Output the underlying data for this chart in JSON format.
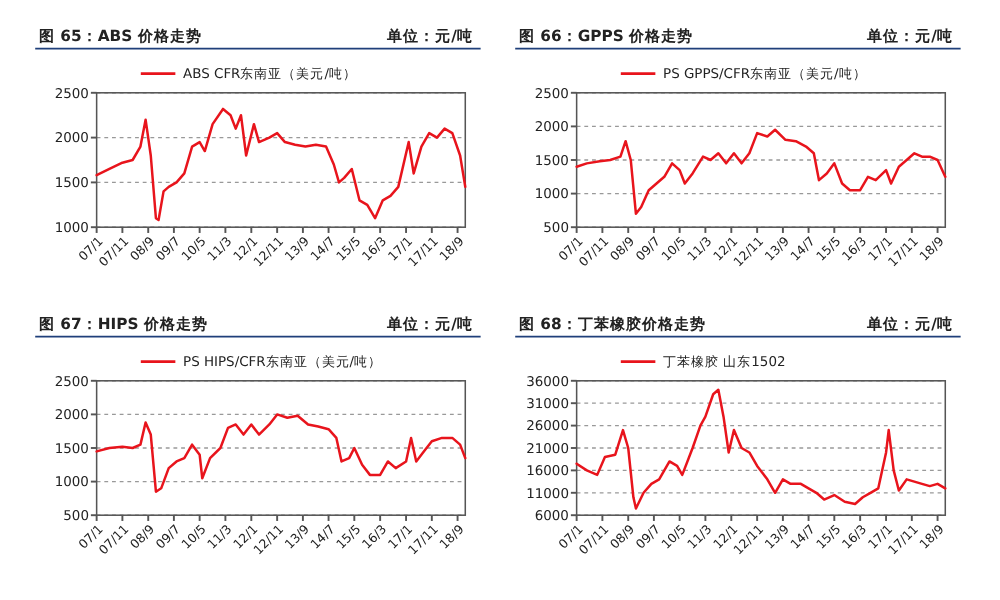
{
  "chart_data": [
    {
      "type": "line",
      "title": "图 65：ABS 价格走势",
      "subtitle": "单位：元/吨",
      "legend": "top",
      "grid": "y",
      "xlim": [
        "2007-01",
        "2018-12"
      ],
      "ylim": [
        1000,
        2500
      ],
      "yticks": [
        1000,
        1500,
        2000,
        2500
      ],
      "xticks": [
        {
          "value": "2007-01",
          "label": "07/1"
        },
        {
          "value": "2007-11",
          "label": "07/11"
        },
        {
          "value": "2008-09",
          "label": "08/9"
        },
        {
          "value": "2009-07",
          "label": "09/7"
        },
        {
          "value": "2010-05",
          "label": "10/5"
        },
        {
          "value": "2011-03",
          "label": "11/3"
        },
        {
          "value": "2012-01",
          "label": "12/1"
        },
        {
          "value": "2012-11",
          "label": "12/11"
        },
        {
          "value": "2013-09",
          "label": "13/9"
        },
        {
          "value": "2014-07",
          "label": "14/7"
        },
        {
          "value": "2015-05",
          "label": "15/5"
        },
        {
          "value": "2016-03",
          "label": "16/3"
        },
        {
          "value": "2017-01",
          "label": "17/1"
        },
        {
          "value": "2017-11",
          "label": "17/11"
        },
        {
          "value": "2018-09",
          "label": "18/9"
        }
      ],
      "series": [
        {
          "name": "ABS CFR东南亚（美元/吨）",
          "color": "#e8141c",
          "x": [
            "2007-01",
            "2007-06",
            "2007-11",
            "2008-03",
            "2008-06",
            "2008-08",
            "2008-10",
            "2008-12",
            "2009-01",
            "2009-03",
            "2009-05",
            "2009-08",
            "2009-11",
            "2010-02",
            "2010-05",
            "2010-07",
            "2010-10",
            "2011-02",
            "2011-05",
            "2011-07",
            "2011-09",
            "2011-11",
            "2012-02",
            "2012-04",
            "2012-08",
            "2012-11",
            "2013-02",
            "2013-06",
            "2013-10",
            "2014-02",
            "2014-06",
            "2014-09",
            "2014-11",
            "2015-01",
            "2015-04",
            "2015-07",
            "2015-10",
            "2016-01",
            "2016-04",
            "2016-07",
            "2016-10",
            "2017-02",
            "2017-04",
            "2017-07",
            "2017-10",
            "2018-01",
            "2018-04",
            "2018-07",
            "2018-10",
            "2018-12"
          ],
          "values": [
            1580,
            1650,
            1720,
            1750,
            1900,
            2200,
            1800,
            1100,
            1080,
            1400,
            1450,
            1500,
            1600,
            1900,
            1950,
            1850,
            2150,
            2320,
            2250,
            2100,
            2250,
            1800,
            2150,
            1950,
            2000,
            2050,
            1950,
            1920,
            1900,
            1920,
            1900,
            1700,
            1500,
            1550,
            1650,
            1300,
            1250,
            1100,
            1300,
            1350,
            1450,
            1950,
            1600,
            1900,
            2050,
            2000,
            2100,
            2050,
            1800,
            1450
          ]
        }
      ]
    },
    {
      "type": "line",
      "title": "图 66：GPPS 价格走势",
      "subtitle": "单位：元/吨",
      "legend": "top",
      "grid": "y",
      "xlim": [
        "2007-01",
        "2018-12"
      ],
      "ylim": [
        500,
        2500
      ],
      "yticks": [
        500,
        1000,
        1500,
        2000,
        2500
      ],
      "xticks": [
        {
          "value": "2007-01",
          "label": "07/1"
        },
        {
          "value": "2007-11",
          "label": "07/11"
        },
        {
          "value": "2008-09",
          "label": "08/9"
        },
        {
          "value": "2009-07",
          "label": "09/7"
        },
        {
          "value": "2010-05",
          "label": "10/5"
        },
        {
          "value": "2011-03",
          "label": "11/3"
        },
        {
          "value": "2012-01",
          "label": "12/1"
        },
        {
          "value": "2012-11",
          "label": "12/11"
        },
        {
          "value": "2013-09",
          "label": "13/9"
        },
        {
          "value": "2014-07",
          "label": "14/7"
        },
        {
          "value": "2015-05",
          "label": "15/5"
        },
        {
          "value": "2016-03",
          "label": "16/3"
        },
        {
          "value": "2017-01",
          "label": "17/1"
        },
        {
          "value": "2017-11",
          "label": "17/11"
        },
        {
          "value": "2018-09",
          "label": "18/9"
        }
      ],
      "series": [
        {
          "name": "PS GPPS/CFR东南亚（美元/吨）",
          "color": "#e8141c",
          "x": [
            "2007-01",
            "2007-05",
            "2007-10",
            "2008-02",
            "2008-06",
            "2008-08",
            "2008-10",
            "2008-12",
            "2009-02",
            "2009-05",
            "2009-08",
            "2009-11",
            "2010-02",
            "2010-05",
            "2010-07",
            "2010-10",
            "2011-02",
            "2011-05",
            "2011-08",
            "2011-11",
            "2012-02",
            "2012-05",
            "2012-08",
            "2012-11",
            "2013-03",
            "2013-06",
            "2013-10",
            "2014-02",
            "2014-06",
            "2014-09",
            "2014-11",
            "2015-02",
            "2015-05",
            "2015-08",
            "2015-11",
            "2016-03",
            "2016-06",
            "2016-09",
            "2017-01",
            "2017-03",
            "2017-06",
            "2017-09",
            "2017-12",
            "2018-03",
            "2018-06",
            "2018-09",
            "2018-12"
          ],
          "values": [
            1400,
            1450,
            1480,
            1500,
            1550,
            1780,
            1500,
            700,
            800,
            1050,
            1150,
            1250,
            1450,
            1350,
            1150,
            1300,
            1550,
            1500,
            1600,
            1450,
            1600,
            1450,
            1600,
            1900,
            1850,
            1950,
            1800,
            1780,
            1700,
            1600,
            1200,
            1300,
            1450,
            1150,
            1050,
            1050,
            1250,
            1200,
            1350,
            1150,
            1400,
            1500,
            1600,
            1550,
            1550,
            1500,
            1250
          ]
        }
      ]
    },
    {
      "type": "line",
      "title": "图 67：HIPS 价格走势",
      "subtitle": "单位：元/吨",
      "legend": "top",
      "grid": "y",
      "xlim": [
        "2007-01",
        "2018-12"
      ],
      "ylim": [
        500,
        2500
      ],
      "yticks": [
        500,
        1000,
        1500,
        2000,
        2500
      ],
      "xticks": [
        {
          "value": "2007-01",
          "label": "07/1"
        },
        {
          "value": "2007-11",
          "label": "07/11"
        },
        {
          "value": "2008-09",
          "label": "08/9"
        },
        {
          "value": "2009-07",
          "label": "09/7"
        },
        {
          "value": "2010-05",
          "label": "10/5"
        },
        {
          "value": "2011-03",
          "label": "11/3"
        },
        {
          "value": "2012-01",
          "label": "12/1"
        },
        {
          "value": "2012-11",
          "label": "12/11"
        },
        {
          "value": "2013-09",
          "label": "13/9"
        },
        {
          "value": "2014-07",
          "label": "14/7"
        },
        {
          "value": "2015-05",
          "label": "15/5"
        },
        {
          "value": "2016-03",
          "label": "16/3"
        },
        {
          "value": "2017-01",
          "label": "17/1"
        },
        {
          "value": "2017-11",
          "label": "17/11"
        },
        {
          "value": "2018-09",
          "label": "18/9"
        }
      ],
      "series": [
        {
          "name": "PS HIPS/CFR东南亚（美元/吨）",
          "color": "#e8141c",
          "x": [
            "2007-01",
            "2007-06",
            "2007-11",
            "2008-03",
            "2008-06",
            "2008-08",
            "2008-10",
            "2008-12",
            "2009-02",
            "2009-05",
            "2009-08",
            "2009-11",
            "2010-02",
            "2010-05",
            "2010-06",
            "2010-09",
            "2011-01",
            "2011-04",
            "2011-07",
            "2011-10",
            "2012-01",
            "2012-04",
            "2012-08",
            "2012-11",
            "2013-03",
            "2013-07",
            "2013-11",
            "2014-03",
            "2014-07",
            "2014-10",
            "2014-12",
            "2015-03",
            "2015-05",
            "2015-08",
            "2015-11",
            "2016-03",
            "2016-06",
            "2016-09",
            "2017-01",
            "2017-03",
            "2017-05",
            "2017-08",
            "2017-11",
            "2018-03",
            "2018-07",
            "2018-10",
            "2018-12"
          ],
          "values": [
            1450,
            1500,
            1520,
            1500,
            1550,
            1880,
            1700,
            850,
            900,
            1200,
            1300,
            1350,
            1550,
            1400,
            1050,
            1350,
            1500,
            1800,
            1850,
            1700,
            1850,
            1700,
            1850,
            2000,
            1950,
            1980,
            1850,
            1820,
            1780,
            1650,
            1300,
            1350,
            1500,
            1250,
            1100,
            1100,
            1300,
            1200,
            1300,
            1650,
            1300,
            1450,
            1600,
            1650,
            1650,
            1550,
            1350
          ]
        }
      ]
    },
    {
      "type": "line",
      "title": "图 68：丁苯橡胶价格走势",
      "subtitle": "单位：元/吨",
      "legend": "top",
      "grid": "y",
      "xlim": [
        "2007-01",
        "2018-12"
      ],
      "ylim": [
        6000,
        36000
      ],
      "yticks": [
        6000,
        11000,
        16000,
        21000,
        26000,
        31000,
        36000
      ],
      "xticks": [
        {
          "value": "2007-01",
          "label": "07/1"
        },
        {
          "value": "2007-11",
          "label": "07/11"
        },
        {
          "value": "2008-09",
          "label": "08/9"
        },
        {
          "value": "2009-07",
          "label": "09/7"
        },
        {
          "value": "2010-05",
          "label": "10/5"
        },
        {
          "value": "2011-03",
          "label": "11/3"
        },
        {
          "value": "2012-01",
          "label": "12/1"
        },
        {
          "value": "2012-11",
          "label": "12/11"
        },
        {
          "value": "2013-09",
          "label": "13/9"
        },
        {
          "value": "2014-07",
          "label": "14/7"
        },
        {
          "value": "2015-05",
          "label": "15/5"
        },
        {
          "value": "2016-03",
          "label": "16/3"
        },
        {
          "value": "2017-01",
          "label": "17/1"
        },
        {
          "value": "2017-11",
          "label": "17/11"
        },
        {
          "value": "2018-09",
          "label": "18/9"
        }
      ],
      "series": [
        {
          "name": "丁苯橡胶 山东1502",
          "color": "#e8141c",
          "x": [
            "2007-01",
            "2007-05",
            "2007-09",
            "2007-12",
            "2008-04",
            "2008-07",
            "2008-09",
            "2008-11",
            "2008-12",
            "2009-03",
            "2009-06",
            "2009-09",
            "2010-01",
            "2010-04",
            "2010-06",
            "2010-10",
            "2011-01",
            "2011-03",
            "2011-06",
            "2011-08",
            "2011-10",
            "2011-12",
            "2012-02",
            "2012-05",
            "2012-08",
            "2012-11",
            "2013-03",
            "2013-06",
            "2013-09",
            "2013-12",
            "2014-04",
            "2014-07",
            "2014-10",
            "2015-01",
            "2015-05",
            "2015-09",
            "2016-01",
            "2016-04",
            "2016-07",
            "2016-10",
            "2017-01",
            "2017-02",
            "2017-04",
            "2017-06",
            "2017-09",
            "2017-12",
            "2018-03",
            "2018-06",
            "2018-09",
            "2018-12"
          ],
          "values": [
            17500,
            16000,
            15000,
            19000,
            19500,
            25000,
            21000,
            10000,
            7500,
            11000,
            13000,
            14000,
            18000,
            17000,
            15000,
            21000,
            26000,
            28000,
            33000,
            34000,
            28000,
            20000,
            25000,
            21000,
            20000,
            17000,
            14000,
            11000,
            14000,
            13000,
            13000,
            12000,
            11000,
            9500,
            10500,
            9000,
            8500,
            10000,
            11000,
            12000,
            20000,
            25000,
            16000,
            11500,
            14000,
            13500,
            13000,
            12500,
            13000,
            12000
          ]
        }
      ]
    }
  ]
}
